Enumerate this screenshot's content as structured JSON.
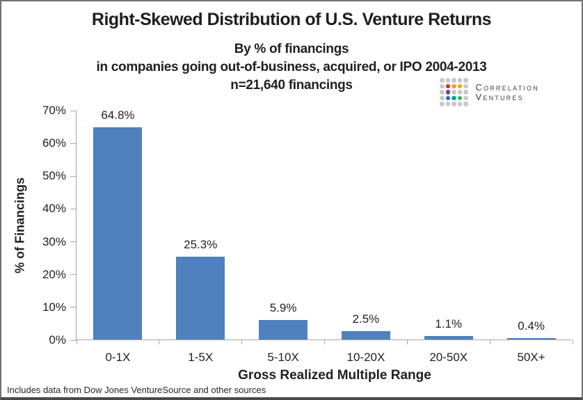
{
  "header": {
    "title": "Right-Skewed Distribution of U.S. Venture Returns",
    "subtitle_line1": "By % of financings",
    "subtitle_line2": "in companies going out-of-business, acquired, or IPO 2004-2013",
    "subtitle_line3": "n=21,640 financings"
  },
  "logo": {
    "name": "Correlation Ventures",
    "line1": "Correlation",
    "line2": "Ventures",
    "dot_colors": {
      "g": "#c8c8c8",
      "red": "#d1282e",
      "orange": "#f5a01a",
      "purple": "#7a3f98",
      "blue": "#2b6cb5",
      "teal": "#00a79d",
      "green": "#3cb54a"
    },
    "dot_grid": [
      [
        "g",
        "g",
        "g",
        "g",
        "g"
      ],
      [
        "g",
        "red",
        "orange",
        "orange",
        "g"
      ],
      [
        "g",
        "purple",
        "g",
        "g",
        "g"
      ],
      [
        "g",
        "blue",
        "teal",
        "green",
        "g"
      ],
      [
        "g",
        "g",
        "g",
        "g",
        "g"
      ]
    ]
  },
  "chart_data": {
    "type": "bar",
    "title": "Right-Skewed Distribution of U.S. Venture Returns",
    "categories": [
      "0-1X",
      "1-5X",
      "5-10X",
      "10-20X",
      "20-50X",
      "50X+"
    ],
    "values": [
      64.8,
      25.3,
      5.9,
      2.5,
      1.1,
      0.4
    ],
    "value_labels": [
      "64.8%",
      "25.3%",
      "5.9%",
      "2.5%",
      "1.1%",
      "0.4%"
    ],
    "xlabel": "Gross Realized Multiple Range",
    "ylabel": "% of Financings",
    "ylim": [
      0,
      70
    ],
    "yticks": [
      "0%",
      "10%",
      "20%",
      "30%",
      "40%",
      "50%",
      "60%",
      "70%"
    ],
    "grid": false,
    "legend": false,
    "bar_color": "#4e81bd",
    "axis_color": "#a6a6a6"
  },
  "footer": {
    "note": "Includes data from Dow Jones VentureSource and other sources"
  }
}
